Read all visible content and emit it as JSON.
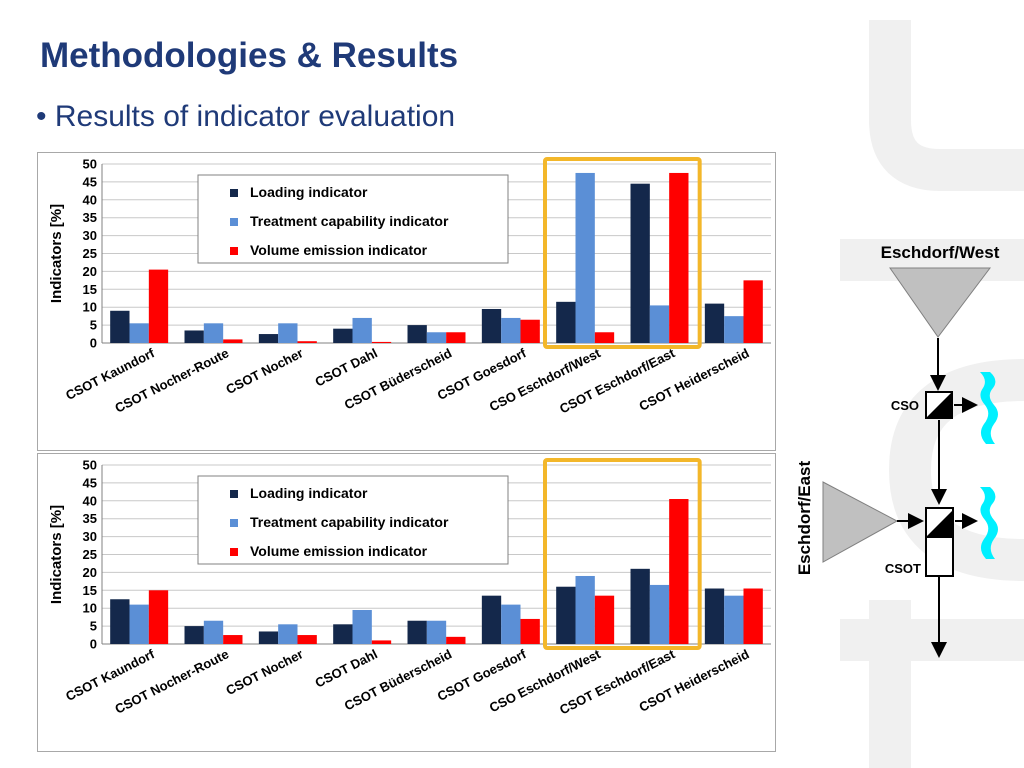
{
  "slide": {
    "title": "Methodologies & Results",
    "bullet": "• Results of indicator evaluation"
  },
  "colors": {
    "title": "#1f3a78",
    "loading": "#14284b",
    "treatment": "#5b8fd6",
    "volume": "#ff0000",
    "highlight": "#f3b72a",
    "cso_water": "#00f0ff",
    "triangle": "#c0c0c0"
  },
  "chart_data": [
    {
      "type": "bar",
      "ylabel": "Indicators  [%]",
      "ylim": [
        0,
        50
      ],
      "yticks": [
        0,
        5,
        10,
        15,
        20,
        25,
        30,
        35,
        40,
        45,
        50
      ],
      "grid": true,
      "legend_position": "top-center",
      "categories": [
        "CSOT Kaundorf",
        "CSOT Nocher-Route",
        "CSOT Nocher",
        "CSOT Dahl",
        "CSOT Büderscheid",
        "CSOT Goesdorf",
        "CSO Eschdorf/West",
        "CSOT Eschdorf/East",
        "CSOT Heiderscheid"
      ],
      "highlighted_categories": [
        "CSO Eschdorf/West",
        "CSOT Eschdorf/East"
      ],
      "series": [
        {
          "name": "Loading indicator",
          "values": [
            9,
            3.5,
            2.5,
            4,
            5,
            9.5,
            11.5,
            44.5,
            11
          ]
        },
        {
          "name": "Treatment capability indicator",
          "values": [
            5.5,
            5.5,
            5.5,
            7,
            3,
            7,
            47.5,
            10.5,
            7.5
          ]
        },
        {
          "name": "Volume emission indicator",
          "values": [
            20.5,
            1,
            0.5,
            0.3,
            3,
            6.5,
            3,
            47.5,
            17.5
          ]
        }
      ]
    },
    {
      "type": "bar",
      "ylabel": "Indicators  [%]",
      "ylim": [
        0,
        50
      ],
      "yticks": [
        0,
        5,
        10,
        15,
        20,
        25,
        30,
        35,
        40,
        45,
        50
      ],
      "grid": true,
      "legend_position": "top-center",
      "categories": [
        "CSOT Kaundorf",
        "CSOT Nocher-Route",
        "CSOT Nocher",
        "CSOT Dahl",
        "CSOT Büderscheid",
        "CSOT Goesdorf",
        "CSO Eschdorf/West",
        "CSOT Eschdorf/East",
        "CSOT Heiderscheid"
      ],
      "highlighted_categories": [
        "CSO Eschdorf/West",
        "CSOT Eschdorf/East"
      ],
      "series": [
        {
          "name": "Loading indicator",
          "values": [
            12.5,
            5,
            3.5,
            5.5,
            6.5,
            13.5,
            16,
            21,
            15.5
          ]
        },
        {
          "name": "Treatment capability indicator",
          "values": [
            11,
            6.5,
            5.5,
            9.5,
            6.5,
            11,
            19,
            16.5,
            13.5
          ]
        },
        {
          "name": "Volume emission indicator",
          "values": [
            15,
            2.5,
            2.5,
            1,
            2,
            7,
            13.5,
            40.5,
            15.5
          ]
        }
      ]
    }
  ],
  "diagram": {
    "west_label": "Eschdorf/West",
    "east_label": "Eschdorf/East",
    "cso_label": "CSO",
    "csot_label": "CSOT"
  }
}
